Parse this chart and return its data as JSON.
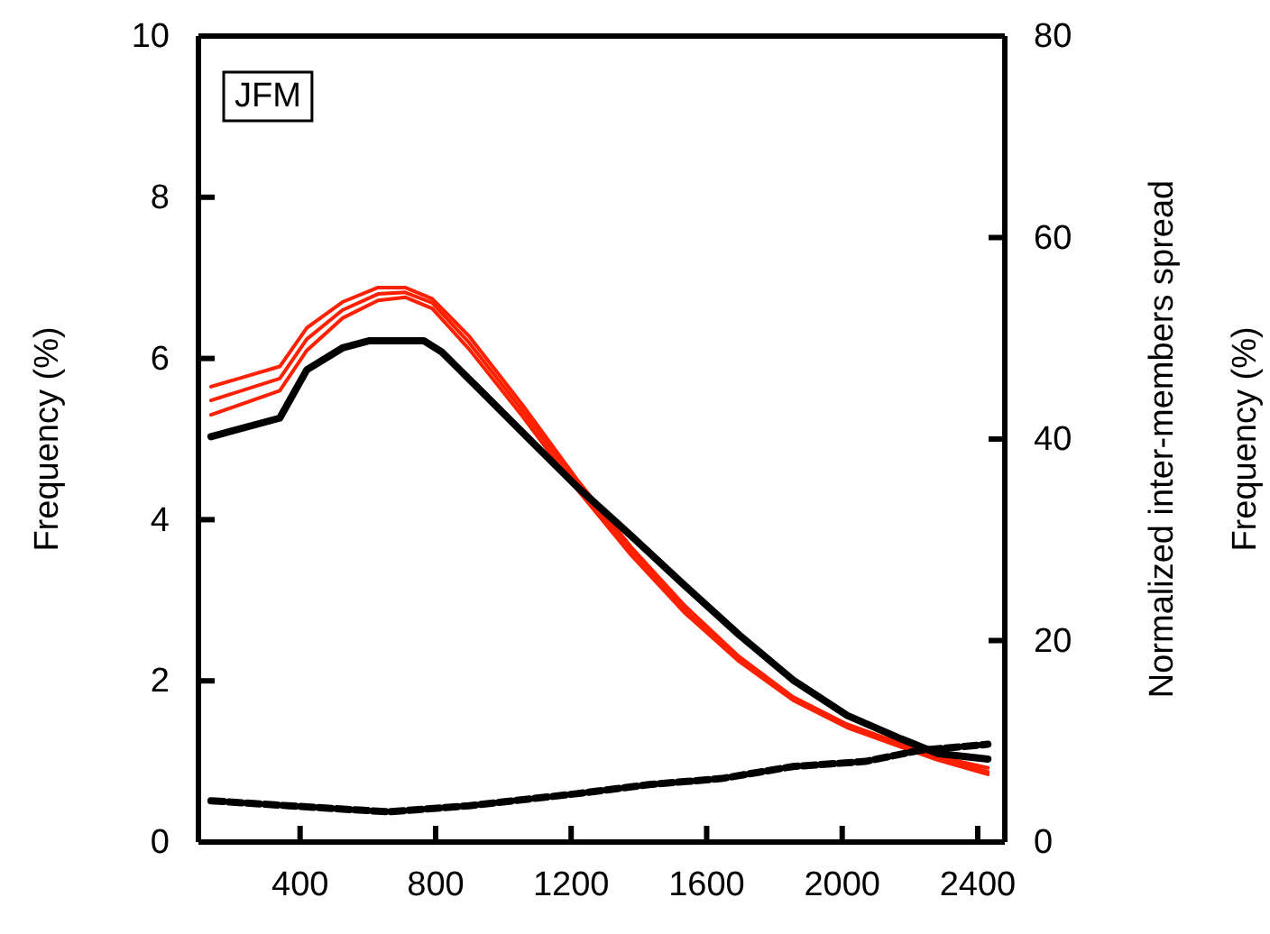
{
  "chart_data": {
    "type": "line",
    "ylabel": "Frequency (%)",
    "y2label": "Normalized inter-members spread\nFrequency (%)",
    "annotations": [
      "JFM"
    ],
    "xlim": [
      100,
      2480
    ],
    "xticks": [
      400,
      800,
      1200,
      1600,
      2000,
      2400
    ],
    "ylim": [
      0,
      10
    ],
    "yticks": [
      0,
      2,
      4,
      6,
      8,
      10
    ],
    "y2lim": [
      0,
      80
    ],
    "y2ticks": [
      0,
      20,
      40,
      60,
      80
    ],
    "grid": false,
    "series": [
      {
        "color": "#ff2000",
        "x": [
          137,
          340,
          420,
          525,
          630,
          710,
          790,
          898,
          1057,
          1217,
          1377,
          1536,
          1696,
          1855,
          2015,
          2174,
          2281,
          2430
        ],
        "values": [
          5.65,
          5.9,
          6.38,
          6.7,
          6.88,
          6.88,
          6.74,
          6.28,
          5.42,
          4.5,
          3.66,
          2.93,
          2.3,
          1.8,
          1.46,
          1.22,
          1.06,
          0.92
        ]
      },
      {
        "color": "#ff2000",
        "x": [
          137,
          340,
          420,
          525,
          630,
          710,
          790,
          898,
          1057,
          1217,
          1377,
          1536,
          1696,
          1855,
          2015,
          2174,
          2281,
          2430
        ],
        "values": [
          5.48,
          5.75,
          6.24,
          6.6,
          6.8,
          6.82,
          6.69,
          6.2,
          5.35,
          4.45,
          3.62,
          2.89,
          2.28,
          1.79,
          1.45,
          1.21,
          1.05,
          0.87
        ]
      },
      {
        "color": "#ff2000",
        "x": [
          137,
          340,
          420,
          525,
          630,
          710,
          790,
          898,
          1057,
          1217,
          1377,
          1536,
          1696,
          1855,
          2015,
          2174,
          2281,
          2430
        ],
        "values": [
          5.3,
          5.6,
          6.1,
          6.5,
          6.72,
          6.76,
          6.62,
          6.12,
          5.28,
          4.38,
          3.56,
          2.84,
          2.24,
          1.76,
          1.42,
          1.18,
          1.02,
          0.84
        ]
      },
      {
        "color": "#000000",
        "x": [
          137,
          340,
          420,
          525,
          605,
          765,
          818,
          924,
          1057,
          1217,
          1377,
          1536,
          1696,
          1855,
          2015,
          2174,
          2281,
          2430
        ],
        "values": [
          5.03,
          5.26,
          5.86,
          6.13,
          6.22,
          6.22,
          6.08,
          5.64,
          5.08,
          4.41,
          3.8,
          3.18,
          2.57,
          2.01,
          1.57,
          1.28,
          1.1,
          1.03
        ]
      },
      {
        "color": "#000000",
        "axis": "y2",
        "line_style": "dashed",
        "x": [
          137,
          366,
          659,
          898,
          1217,
          1430,
          1643,
          1855,
          2068,
          2228,
          2430
        ],
        "values": [
          4.1,
          3.6,
          3.0,
          3.6,
          4.8,
          5.7,
          6.3,
          7.5,
          8.0,
          9.1,
          9.7
        ]
      }
    ]
  }
}
